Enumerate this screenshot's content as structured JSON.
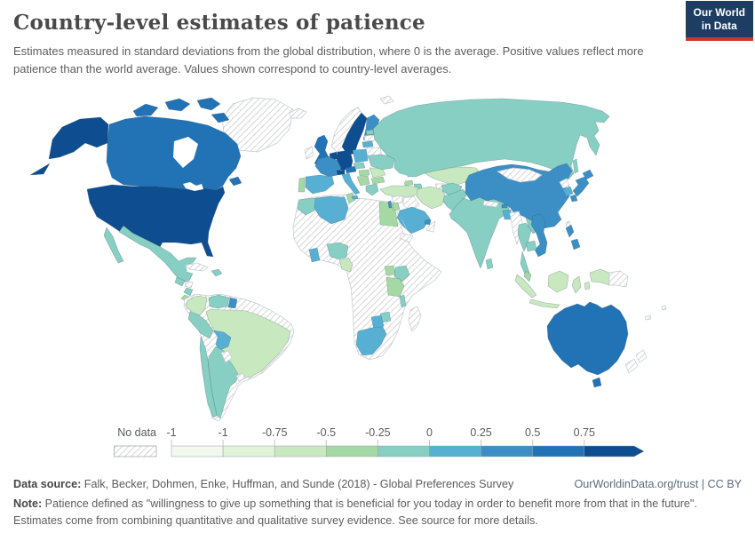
{
  "header": {
    "title": "Country-level estimates of patience",
    "subtitle": "Estimates measured in standard deviations from the global distribution, where 0 is the average. Positive values reflect more patience than the world average. Values shown correspond to country-level averages.",
    "logo": {
      "line1": "Our World",
      "line2": "in Data"
    }
  },
  "legend": {
    "no_data_label": "No data",
    "ticks": [
      "-1",
      "-1",
      "-0.75",
      "-0.5",
      "-0.25",
      "0",
      "0.25",
      "0.5",
      "0.75"
    ]
  },
  "footer": {
    "datasource_label": "Data source:",
    "datasource_text": " Falk, Becker, Dohmen, Enke, Huffman, and Sunde (2018) - Global Preferences Survey",
    "link": "OurWorldinData.org/trust | CC BY",
    "note_label": "Note:",
    "note_text": " Patience defined as \"willingness to give up something that is beneficial for you today in order to benefit more from that in the future\". Estimates come from combining quantitative and qualitative survey evidence. See source for more details."
  },
  "chart_data": {
    "type": "choropleth",
    "title": "Country-level estimates of patience",
    "unit": "standard deviations from the global average",
    "legend_position": "bottom",
    "no_data": {
      "label": "No data",
      "pattern": "diagonal-hatch"
    },
    "buckets": [
      {
        "range": "< -1",
        "color": "#f0f9eb"
      },
      {
        "range": "-1 to -0.75",
        "color": "#e0f3d8"
      },
      {
        "range": "-0.75 to -0.5",
        "color": "#c8e8c0"
      },
      {
        "range": "-0.5 to -0.25",
        "color": "#a5d9a4"
      },
      {
        "range": "-0.25 to 0",
        "color": "#87cfc2"
      },
      {
        "range": "0 to 0.25",
        "color": "#57b0d3"
      },
      {
        "range": "0.25 to 0.5",
        "color": "#3b8fc5"
      },
      {
        "range": "0.5 to 0.75",
        "color": "#2272b6"
      },
      {
        "range": "> 0.75",
        "color": "#0e4d90"
      }
    ],
    "countries": [
      {
        "id": "usa",
        "name": "United States",
        "bucket": 8,
        "estimate": "> 0.75"
      },
      {
        "id": "canada",
        "name": "Canada",
        "bucket": 7,
        "estimate": "0.5 to 0.75"
      },
      {
        "id": "greenland",
        "name": "Greenland",
        "bucket": null,
        "estimate": "No data"
      },
      {
        "id": "mexico",
        "name": "Mexico",
        "bucket": 4,
        "estimate": "-0.25 to 0"
      },
      {
        "id": "guatemala",
        "name": "Guatemala",
        "bucket": 4,
        "estimate": "-0.25 to 0"
      },
      {
        "id": "honduras",
        "name": "Honduras",
        "bucket": null,
        "estimate": "No data"
      },
      {
        "id": "nicaragua",
        "name": "Nicaragua",
        "bucket": 4,
        "estimate": "-0.25 to 0"
      },
      {
        "id": "costa-rica",
        "name": "Costa Rica",
        "bucket": 3,
        "estimate": "-0.5 to -0.25"
      },
      {
        "id": "panama",
        "name": "Panama",
        "bucket": null,
        "estimate": "No data"
      },
      {
        "id": "cuba",
        "name": "Cuba",
        "bucket": null,
        "estimate": "No data"
      },
      {
        "id": "haiti",
        "name": "Haiti",
        "bucket": 4,
        "estimate": "-0.25 to 0"
      },
      {
        "id": "colombia",
        "name": "Colombia",
        "bucket": 2,
        "estimate": "-0.75 to -0.5"
      },
      {
        "id": "venezuela",
        "name": "Venezuela",
        "bucket": 4,
        "estimate": "-0.25 to 0"
      },
      {
        "id": "guyana",
        "name": "Guyana",
        "bucket": 6,
        "estimate": "0.25 to 0.5"
      },
      {
        "id": "suriname",
        "name": "Suriname",
        "bucket": null,
        "estimate": "No data"
      },
      {
        "id": "ecuador",
        "name": "Ecuador",
        "bucket": null,
        "estimate": "No data"
      },
      {
        "id": "brazil",
        "name": "Brazil",
        "bucket": 2,
        "estimate": "-0.75 to -0.5"
      },
      {
        "id": "peru",
        "name": "Peru",
        "bucket": 4,
        "estimate": "-0.25 to 0"
      },
      {
        "id": "bolivia",
        "name": "Bolivia",
        "bucket": 5,
        "estimate": "0 to 0.25"
      },
      {
        "id": "paraguay",
        "name": "Paraguay",
        "bucket": null,
        "estimate": "No data"
      },
      {
        "id": "uruguay",
        "name": "Uruguay",
        "bucket": null,
        "estimate": "No data"
      },
      {
        "id": "chile",
        "name": "Chile",
        "bucket": 4,
        "estimate": "-0.25 to 0"
      },
      {
        "id": "argentina",
        "name": "Argentina",
        "bucket": 4,
        "estimate": "-0.25 to 0"
      },
      {
        "id": "iceland",
        "name": "Iceland",
        "bucket": null,
        "estimate": "No data"
      },
      {
        "id": "ireland",
        "name": "Ireland",
        "bucket": null,
        "estimate": "No data"
      },
      {
        "id": "uk",
        "name": "United Kingdom",
        "bucket": 7,
        "estimate": "0.5 to 0.75"
      },
      {
        "id": "portugal",
        "name": "Portugal",
        "bucket": 3,
        "estimate": "-0.5 to -0.25"
      },
      {
        "id": "spain",
        "name": "Spain",
        "bucket": 5,
        "estimate": "0 to 0.25"
      },
      {
        "id": "france",
        "name": "France",
        "bucket": 6,
        "estimate": "0.25 to 0.5"
      },
      {
        "id": "netherlands",
        "name": "Netherlands",
        "bucket": 8,
        "estimate": "> 0.75"
      },
      {
        "id": "germany",
        "name": "Germany",
        "bucket": 8,
        "estimate": "> 0.75"
      },
      {
        "id": "denmark",
        "name": "Denmark",
        "bucket": 7,
        "estimate": "0.5 to 0.75"
      },
      {
        "id": "norway",
        "name": "Norway",
        "bucket": null,
        "estimate": "No data"
      },
      {
        "id": "sweden",
        "name": "Sweden",
        "bucket": 8,
        "estimate": "> 0.75"
      },
      {
        "id": "finland",
        "name": "Finland",
        "bucket": 6,
        "estimate": "0.25 to 0.5"
      },
      {
        "id": "estonia",
        "name": "Estonia",
        "bucket": 4,
        "estimate": "-0.25 to 0"
      },
      {
        "id": "latvia",
        "name": "Latvia",
        "bucket": null,
        "estimate": "No data"
      },
      {
        "id": "lithuania",
        "name": "Lithuania",
        "bucket": 5,
        "estimate": "0 to 0.25"
      },
      {
        "id": "belarus",
        "name": "Belarus",
        "bucket": null,
        "estimate": "No data"
      },
      {
        "id": "poland",
        "name": "Poland",
        "bucket": 5,
        "estimate": "0 to 0.25"
      },
      {
        "id": "czechia",
        "name": "Czechia",
        "bucket": 4,
        "estimate": "-0.25 to 0"
      },
      {
        "id": "switzerland",
        "name": "Switzerland",
        "bucket": 8,
        "estimate": "> 0.75"
      },
      {
        "id": "austria",
        "name": "Austria",
        "bucket": 7,
        "estimate": "0.5 to 0.75"
      },
      {
        "id": "hungary",
        "name": "Hungary",
        "bucket": 3,
        "estimate": "-0.5 to -0.25"
      },
      {
        "id": "serbia",
        "name": "Serbia",
        "bucket": 3,
        "estimate": "-0.5 to -0.25"
      },
      {
        "id": "romania",
        "name": "Romania",
        "bucket": 2,
        "estimate": "-0.75 to -0.5"
      },
      {
        "id": "bulgaria",
        "name": "Bulgaria",
        "bucket": 3,
        "estimate": "-0.5 to -0.25"
      },
      {
        "id": "greece",
        "name": "Greece",
        "bucket": 4,
        "estimate": "-0.25 to 0"
      },
      {
        "id": "italy",
        "name": "Italy",
        "bucket": 5,
        "estimate": "0 to 0.25"
      },
      {
        "id": "ukraine",
        "name": "Ukraine",
        "bucket": 4,
        "estimate": "-0.25 to 0"
      },
      {
        "id": "russia",
        "name": "Russia",
        "bucket": 4,
        "estimate": "-0.25 to 0"
      },
      {
        "id": "kazakhstan",
        "name": "Kazakhstan",
        "bucket": 2,
        "estimate": "-0.75 to -0.5"
      },
      {
        "id": "central-asia",
        "name": "Uzbekistan / Turkmenistan",
        "bucket": null,
        "estimate": "No data"
      },
      {
        "id": "georgia",
        "name": "Georgia",
        "bucket": 3,
        "estimate": "-0.5 to -0.25"
      },
      {
        "id": "azerbaijan",
        "name": "Azerbaijan",
        "bucket": 4,
        "estimate": "-0.25 to 0"
      },
      {
        "id": "turkey",
        "name": "Turkey",
        "bucket": 2,
        "estimate": "-0.75 to -0.5"
      },
      {
        "id": "syria",
        "name": "Syria",
        "bucket": null,
        "estimate": "No data"
      },
      {
        "id": "iraq",
        "name": "Iraq",
        "bucket": null,
        "estimate": "No data"
      },
      {
        "id": "israel",
        "name": "Israel",
        "bucket": 6,
        "estimate": "0.25 to 0.5"
      },
      {
        "id": "jordan",
        "name": "Jordan",
        "bucket": 3,
        "estimate": "-0.5 to -0.25"
      },
      {
        "id": "saudi-arabia",
        "name": "Saudi Arabia",
        "bucket": 5,
        "estimate": "0 to 0.25"
      },
      {
        "id": "uae",
        "name": "United Arab Emirates",
        "bucket": 6,
        "estimate": "0.25 to 0.5"
      },
      {
        "id": "oman",
        "name": "Oman",
        "bucket": null,
        "estimate": "No data"
      },
      {
        "id": "yemen",
        "name": "Yemen",
        "bucket": null,
        "estimate": "No data"
      },
      {
        "id": "iran",
        "name": "Iran",
        "bucket": 2,
        "estimate": "-0.75 to -0.5"
      },
      {
        "id": "afghanistan",
        "name": "Afghanistan",
        "bucket": 4,
        "estimate": "-0.25 to 0"
      },
      {
        "id": "pakistan",
        "name": "Pakistan",
        "bucket": 4,
        "estimate": "-0.25 to 0"
      },
      {
        "id": "india",
        "name": "India",
        "bucket": 4,
        "estimate": "-0.25 to 0"
      },
      {
        "id": "nepal",
        "name": "Nepal",
        "bucket": null,
        "estimate": "No data"
      },
      {
        "id": "bhutan",
        "name": "Bhutan",
        "bucket": 6,
        "estimate": "0.25 to 0.5"
      },
      {
        "id": "bangladesh",
        "name": "Bangladesh",
        "bucket": 5,
        "estimate": "0 to 0.25"
      },
      {
        "id": "sri-lanka",
        "name": "Sri Lanka",
        "bucket": 4,
        "estimate": "-0.25 to 0"
      },
      {
        "id": "myanmar",
        "name": "Myanmar",
        "bucket": null,
        "estimate": "No data"
      },
      {
        "id": "thailand",
        "name": "Thailand",
        "bucket": 4,
        "estimate": "-0.25 to 0"
      },
      {
        "id": "laos",
        "name": "Laos",
        "bucket": 4,
        "estimate": "-0.25 to 0"
      },
      {
        "id": "cambodia",
        "name": "Cambodia",
        "bucket": 4,
        "estimate": "-0.25 to 0"
      },
      {
        "id": "vietnam",
        "name": "Vietnam",
        "bucket": 6,
        "estimate": "0.25 to 0.5"
      },
      {
        "id": "malaysia",
        "name": "Malaysia",
        "bucket": 3,
        "estimate": "-0.5 to -0.25"
      },
      {
        "id": "indonesia",
        "name": "Indonesia",
        "bucket": 2,
        "estimate": "-0.75 to -0.5"
      },
      {
        "id": "philippines",
        "name": "Philippines",
        "bucket": 6,
        "estimate": "0.25 to 0.5"
      },
      {
        "id": "china",
        "name": "China",
        "bucket": 6,
        "estimate": "0.25 to 0.5"
      },
      {
        "id": "mongolia",
        "name": "Mongolia",
        "bucket": null,
        "estimate": "No data"
      },
      {
        "id": "north-korea",
        "name": "North Korea",
        "bucket": null,
        "estimate": "No data"
      },
      {
        "id": "south-korea",
        "name": "South Korea",
        "bucket": 5,
        "estimate": "0 to 0.25"
      },
      {
        "id": "japan",
        "name": "Japan",
        "bucket": 6,
        "estimate": "0.25 to 0.5"
      },
      {
        "id": "taiwan",
        "name": "Taiwan",
        "bucket": null,
        "estimate": "No data"
      },
      {
        "id": "papua-new-guinea",
        "name": "Papua New Guinea",
        "bucket": null,
        "estimate": "No data"
      },
      {
        "id": "australia",
        "name": "Australia",
        "bucket": 7,
        "estimate": "0.5 to 0.75"
      },
      {
        "id": "new-zealand",
        "name": "New Zealand",
        "bucket": null,
        "estimate": "No data"
      },
      {
        "id": "fiji",
        "name": "Fiji",
        "bucket": null,
        "estimate": "No data"
      },
      {
        "id": "new-caledonia",
        "name": "New Caledonia",
        "bucket": null,
        "estimate": "No data"
      },
      {
        "id": "morocco",
        "name": "Morocco",
        "bucket": 4,
        "estimate": "-0.25 to 0"
      },
      {
        "id": "algeria",
        "name": "Algeria",
        "bucket": 5,
        "estimate": "0 to 0.25"
      },
      {
        "id": "tunisia",
        "name": "Tunisia",
        "bucket": 3,
        "estimate": "-0.5 to -0.25"
      },
      {
        "id": "libya",
        "name": "Libya",
        "bucket": null,
        "estimate": "No data"
      },
      {
        "id": "egypt",
        "name": "Egypt",
        "bucket": 3,
        "estimate": "-0.5 to -0.25"
      },
      {
        "id": "sudan",
        "name": "Sudan",
        "bucket": null,
        "estimate": "No data"
      },
      {
        "id": "ethiopia",
        "name": "Ethiopia",
        "bucket": null,
        "estimate": "No data"
      },
      {
        "id": "somalia",
        "name": "Somalia",
        "bucket": null,
        "estimate": "No data"
      },
      {
        "id": "ghana",
        "name": "Ghana",
        "bucket": 5,
        "estimate": "0 to 0.25"
      },
      {
        "id": "nigeria",
        "name": "Nigeria",
        "bucket": 4,
        "estimate": "-0.25 to 0"
      },
      {
        "id": "cameroon",
        "name": "Cameroon",
        "bucket": 2,
        "estimate": "-0.75 to -0.5"
      },
      {
        "id": "uganda",
        "name": "Uganda",
        "bucket": 3,
        "estimate": "-0.5 to -0.25"
      },
      {
        "id": "kenya",
        "name": "Kenya",
        "bucket": 4,
        "estimate": "-0.25 to 0"
      },
      {
        "id": "tanzania",
        "name": "Tanzania",
        "bucket": 3,
        "estimate": "-0.5 to -0.25"
      },
      {
        "id": "malawi",
        "name": "Malawi",
        "bucket": 4,
        "estimate": "-0.25 to 0"
      },
      {
        "id": "zimbabwe",
        "name": "Zimbabwe",
        "bucket": 4,
        "estimate": "-0.25 to 0"
      },
      {
        "id": "botswana",
        "name": "Botswana",
        "bucket": 5,
        "estimate": "0 to 0.25"
      },
      {
        "id": "south-africa",
        "name": "South Africa",
        "bucket": 5,
        "estimate": "0 to 0.25"
      },
      {
        "id": "madagascar",
        "name": "Madagascar",
        "bucket": null,
        "estimate": "No data"
      },
      {
        "id": "drc",
        "name": "Democratic Republic of Congo",
        "bucket": null,
        "estimate": "No data"
      },
      {
        "id": "angola",
        "name": "Angola",
        "bucket": null,
        "estimate": "No data"
      },
      {
        "id": "mozambique",
        "name": "Mozambique",
        "bucket": null,
        "estimate": "No data"
      },
      {
        "id": "namibia",
        "name": "Namibia",
        "bucket": null,
        "estimate": "No data"
      },
      {
        "id": "zambia",
        "name": "Zambia",
        "bucket": null,
        "estimate": "No data"
      },
      {
        "id": "mali",
        "name": "Mali",
        "bucket": null,
        "estimate": "No data"
      },
      {
        "id": "niger",
        "name": "Niger",
        "bucket": null,
        "estimate": "No data"
      },
      {
        "id": "chad",
        "name": "Chad",
        "bucket": null,
        "estimate": "No data"
      },
      {
        "id": "svalbard",
        "name": "Svalbard",
        "bucket": null,
        "estimate": "No data"
      }
    ]
  }
}
